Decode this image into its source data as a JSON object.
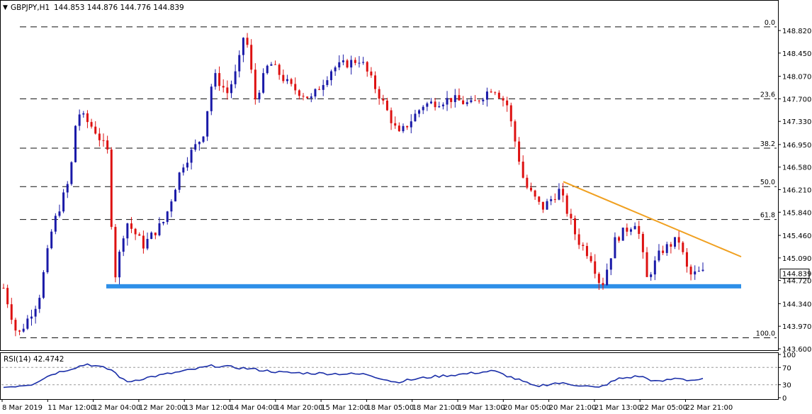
{
  "header": {
    "symbol_label": "GBPJPY,H1",
    "ohlc_text": "144.853 144.876 144.776 144.839"
  },
  "colors": {
    "bull": "#1a1aa8",
    "bear": "#dd1111",
    "support_zone": "#2e8fe8",
    "trendline": "#f0a020",
    "fib_line": "#111111",
    "rsi_line": "#1a2ea8",
    "price_tag_bg": "#ffffff"
  },
  "chart_data": [
    {
      "type": "candlestick",
      "title": "GBPJPY,H1",
      "ylim": [
        143.6,
        148.995
      ],
      "y_ticks": [
        "148.820",
        "148.450",
        "148.070",
        "147.700",
        "147.330",
        "146.950",
        "146.580",
        "146.210",
        "145.840",
        "145.460",
        "145.090",
        "144.720",
        "144.340",
        "143.970",
        "143.600"
      ],
      "x_ticks": [
        "8 Mar 2019",
        "11 Mar 12:00",
        "12 Mar 04:00",
        "12 Mar 20:00",
        "13 Mar 12:00",
        "14 Mar 04:00",
        "14 Mar 20:00",
        "15 Mar 12:00",
        "18 Mar 05:00",
        "18 Mar 21:00",
        "19 Mar 13:00",
        "20 Mar 05:00",
        "20 Mar 21:00",
        "21 Mar 13:00",
        "22 Mar 05:00",
        "22 Mar 21:00"
      ],
      "current_price": "144.839",
      "fibonacci_levels": [
        {
          "label": "0.0",
          "price": 148.88
        },
        {
          "label": "23.6",
          "price": 147.7
        },
        {
          "label": "38.2",
          "price": 146.89
        },
        {
          "label": "50.0",
          "price": 146.26
        },
        {
          "label": "61.8",
          "price": 145.72
        },
        {
          "label": "100.0",
          "price": 143.78
        }
      ],
      "support_zone": {
        "low": 144.59,
        "high": 144.66
      },
      "trendline": {
        "from": {
          "x": "20 Mar 21:00",
          "price": 146.34
        },
        "to": {
          "x": "22 Mar 21:00",
          "price": 145.11
        }
      },
      "path_points": [
        {
          "x": 0.0,
          "price": 144.6
        },
        {
          "x": 0.02,
          "price": 143.8
        },
        {
          "x": 0.05,
          "price": 144.4
        },
        {
          "x": 0.07,
          "price": 145.6
        },
        {
          "x": 0.095,
          "price": 146.4
        },
        {
          "x": 0.105,
          "price": 147.5
        },
        {
          "x": 0.13,
          "price": 147.2
        },
        {
          "x": 0.15,
          "price": 146.8
        },
        {
          "x": 0.158,
          "price": 144.7
        },
        {
          "x": 0.175,
          "price": 145.7
        },
        {
          "x": 0.2,
          "price": 145.3
        },
        {
          "x": 0.23,
          "price": 145.7
        },
        {
          "x": 0.255,
          "price": 146.6
        },
        {
          "x": 0.285,
          "price": 147.1
        },
        {
          "x": 0.3,
          "price": 148.1
        },
        {
          "x": 0.32,
          "price": 147.8
        },
        {
          "x": 0.335,
          "price": 148.2
        },
        {
          "x": 0.345,
          "price": 148.85
        },
        {
          "x": 0.36,
          "price": 147.7
        },
        {
          "x": 0.38,
          "price": 148.3
        },
        {
          "x": 0.41,
          "price": 147.9
        },
        {
          "x": 0.44,
          "price": 147.7
        },
        {
          "x": 0.47,
          "price": 148.2
        },
        {
          "x": 0.51,
          "price": 148.35
        },
        {
          "x": 0.54,
          "price": 147.7
        },
        {
          "x": 0.565,
          "price": 147.1
        },
        {
          "x": 0.6,
          "price": 147.6
        },
        {
          "x": 0.64,
          "price": 147.7
        },
        {
          "x": 0.67,
          "price": 147.6
        },
        {
          "x": 0.7,
          "price": 147.9
        },
        {
          "x": 0.72,
          "price": 147.6
        },
        {
          "x": 0.745,
          "price": 146.3
        },
        {
          "x": 0.77,
          "price": 145.9
        },
        {
          "x": 0.795,
          "price": 146.2
        },
        {
          "x": 0.82,
          "price": 145.4
        },
        {
          "x": 0.84,
          "price": 145.1
        },
        {
          "x": 0.855,
          "price": 144.6
        },
        {
          "x": 0.875,
          "price": 145.4
        },
        {
          "x": 0.905,
          "price": 145.7
        },
        {
          "x": 0.92,
          "price": 144.75
        },
        {
          "x": 0.94,
          "price": 145.2
        },
        {
          "x": 0.965,
          "price": 145.4
        },
        {
          "x": 0.98,
          "price": 144.8
        },
        {
          "x": 0.995,
          "price": 144.85
        }
      ]
    },
    {
      "type": "line",
      "title": "RSI(14) 42.4742",
      "ylim": [
        0,
        100
      ],
      "y_ticks": [
        "100",
        "70",
        "30",
        "0"
      ],
      "reference_lines": [
        70,
        30
      ],
      "path_points": [
        {
          "x": 0.0,
          "value": 24
        },
        {
          "x": 0.04,
          "value": 31
        },
        {
          "x": 0.07,
          "value": 55
        },
        {
          "x": 0.12,
          "value": 78
        },
        {
          "x": 0.155,
          "value": 64
        },
        {
          "x": 0.175,
          "value": 36
        },
        {
          "x": 0.21,
          "value": 48
        },
        {
          "x": 0.26,
          "value": 62
        },
        {
          "x": 0.3,
          "value": 74
        },
        {
          "x": 0.345,
          "value": 68
        },
        {
          "x": 0.4,
          "value": 58
        },
        {
          "x": 0.46,
          "value": 56
        },
        {
          "x": 0.52,
          "value": 54
        },
        {
          "x": 0.56,
          "value": 36
        },
        {
          "x": 0.61,
          "value": 48
        },
        {
          "x": 0.66,
          "value": 55
        },
        {
          "x": 0.7,
          "value": 62
        },
        {
          "x": 0.735,
          "value": 42
        },
        {
          "x": 0.76,
          "value": 26
        },
        {
          "x": 0.79,
          "value": 34
        },
        {
          "x": 0.83,
          "value": 28
        },
        {
          "x": 0.85,
          "value": 22
        },
        {
          "x": 0.88,
          "value": 44
        },
        {
          "x": 0.91,
          "value": 50
        },
        {
          "x": 0.935,
          "value": 36
        },
        {
          "x": 0.965,
          "value": 46
        },
        {
          "x": 0.98,
          "value": 40
        },
        {
          "x": 0.995,
          "value": 42
        }
      ]
    }
  ]
}
